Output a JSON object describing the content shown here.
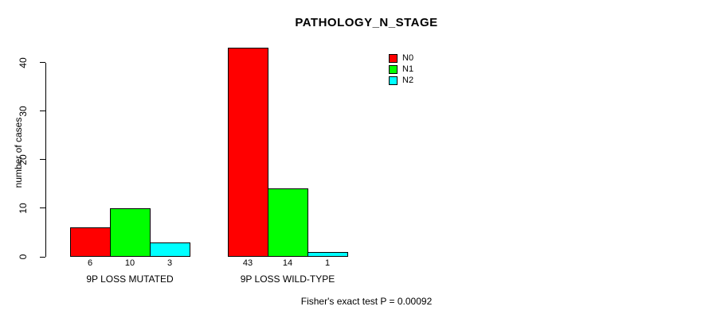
{
  "chart_data": {
    "type": "bar",
    "title": "PATHOLOGY_N_STAGE",
    "ylabel": "number of cases",
    "xlabel": "",
    "ylim": [
      0,
      40
    ],
    "yticks": [
      0,
      10,
      20,
      30,
      40
    ],
    "grid": false,
    "legend_position": "top-right",
    "categories": [
      "9P LOSS MUTATED",
      "9P LOSS WILD-TYPE"
    ],
    "series": [
      {
        "name": "N0",
        "color": "#FF0000",
        "values": [
          6,
          43
        ]
      },
      {
        "name": "N1",
        "color": "#00FF00",
        "values": [
          10,
          14
        ]
      },
      {
        "name": "N2",
        "color": "#00FFFF",
        "values": [
          3,
          1
        ]
      }
    ],
    "bar_value_labels_shown": true,
    "footnote": "Fisher's exact test P = 0.00092"
  }
}
